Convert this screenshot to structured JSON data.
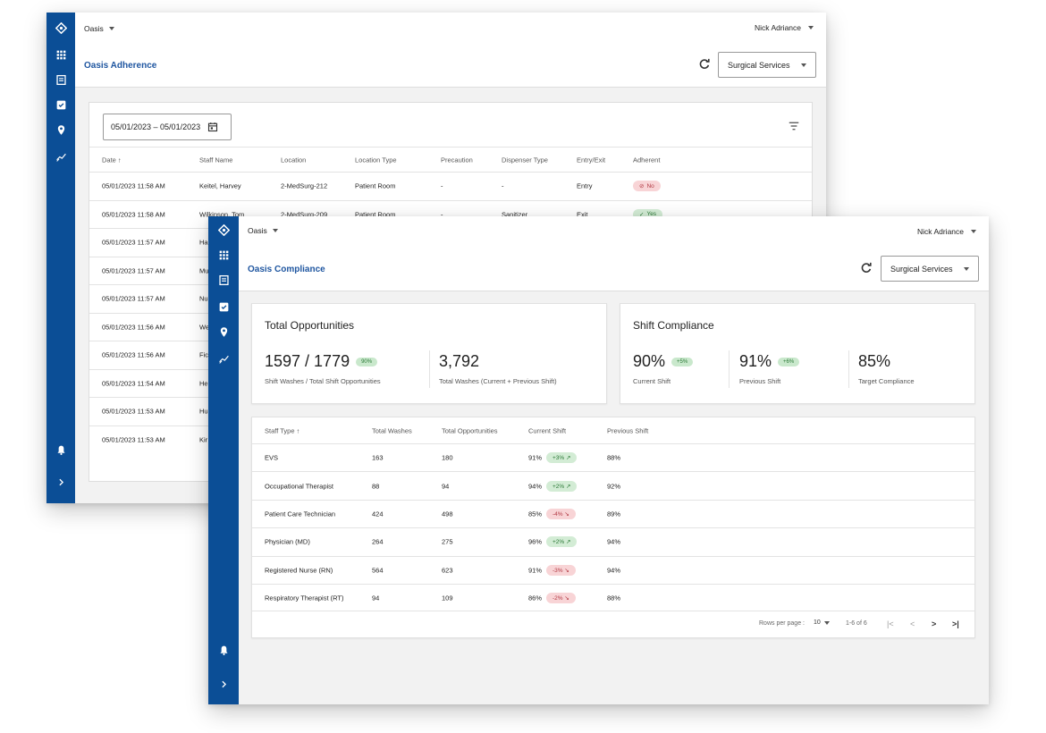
{
  "back": {
    "app_name": "Oasis",
    "user_name": "Nick Adriance",
    "page_title": "Oasis Adherence",
    "department": "Surgical Services",
    "date_range": "05/01/2023 – 05/01/2023",
    "columns": [
      "Date ↑",
      "Staff Name",
      "Location",
      "Location Type",
      "Precaution",
      "Dispenser Type",
      "Entry/Exit",
      "Adherent"
    ],
    "rows": [
      {
        "date": "05/01/2023 11:58 AM",
        "staff": "Keitel, Harvey",
        "location": "2-MedSurg-212",
        "location_type": "Patient Room",
        "precaution": "-",
        "dispenser": "-",
        "entry_exit": "Entry",
        "adherent": "No",
        "adherent_icon": "⊘",
        "status": "red"
      },
      {
        "date": "05/01/2023 11:58 AM",
        "staff": "Wilkinson, Tom",
        "location": "2-MedSurg-209",
        "location_type": "Patient Room",
        "precaution": "-",
        "dispenser": "Sanitizer",
        "entry_exit": "Exit",
        "adherent": "Yes",
        "adherent_icon": "✓",
        "status": "green"
      },
      {
        "date": "05/01/2023 11:57 AM",
        "staff": "Ha"
      },
      {
        "date": "05/01/2023 11:57 AM",
        "staff": "Mu"
      },
      {
        "date": "05/01/2023 11:57 AM",
        "staff": "Nu"
      },
      {
        "date": "05/01/2023 11:56 AM",
        "staff": "We"
      },
      {
        "date": "05/01/2023 11:56 AM",
        "staff": "Fic"
      },
      {
        "date": "05/01/2023 11:54 AM",
        "staff": "He"
      },
      {
        "date": "05/01/2023 11:53 AM",
        "staff": "Hu"
      },
      {
        "date": "05/01/2023 11:53 AM",
        "staff": "Kir"
      }
    ]
  },
  "front": {
    "app_name": "Oasis",
    "user_name": "Nick Adriance",
    "page_title": "Oasis Compliance",
    "department": "Surgical Services",
    "total_opportunities": {
      "title": "Total Opportunities",
      "ratio": "1597 / 1779",
      "ratio_badge": "90%",
      "ratio_label": "Shift Washes / Total Shift Opportunities",
      "total_washes": "3,792",
      "total_washes_label": "Total Washes (Current + Previous Shift)"
    },
    "shift_compliance": {
      "title": "Shift Compliance",
      "current": "90%",
      "current_badge": "+5%",
      "current_label": "Current Shift",
      "previous": "91%",
      "previous_badge": "+6%",
      "previous_label": "Previous Shift",
      "target": "85%",
      "target_label": "Target Compliance"
    },
    "columns": [
      "Staff Type ↑",
      "Total Washes",
      "Total Opportunities",
      "Current Shift",
      "Previous Shift"
    ],
    "rows": [
      {
        "type": "EVS",
        "washes": "163",
        "opps": "180",
        "current": "91%",
        "delta": "+3% ↗",
        "trend": "green",
        "previous": "88%"
      },
      {
        "type": "Occupational Therapist",
        "washes": "88",
        "opps": "94",
        "current": "94%",
        "delta": "+2% ↗",
        "trend": "green",
        "previous": "92%"
      },
      {
        "type": "Patient Care Technician",
        "washes": "424",
        "opps": "498",
        "current": "85%",
        "delta": "-4% ↘",
        "trend": "red",
        "previous": "89%"
      },
      {
        "type": "Physician (MD)",
        "washes": "264",
        "opps": "275",
        "current": "96%",
        "delta": "+2% ↗",
        "trend": "green",
        "previous": "94%"
      },
      {
        "type": "Registered Nurse (RN)",
        "washes": "564",
        "opps": "623",
        "current": "91%",
        "delta": "-3% ↘",
        "trend": "red",
        "previous": "94%"
      },
      {
        "type": "Respiratory Therapist (RT)",
        "washes": "94",
        "opps": "109",
        "current": "86%",
        "delta": "-2% ↘",
        "trend": "red",
        "previous": "88%"
      }
    ],
    "footer": {
      "rows_per_page_label": "Rows per page :",
      "rows_per_page_value": "10",
      "range": "1-6 of 6",
      "first": "|<",
      "prev": "<",
      "next": ">",
      "last": ">|"
    }
  },
  "colors": {
    "rail": "#0b4e96",
    "accent": "#1f56a0",
    "positive": "#2d7a38",
    "negative": "#b23a44"
  }
}
